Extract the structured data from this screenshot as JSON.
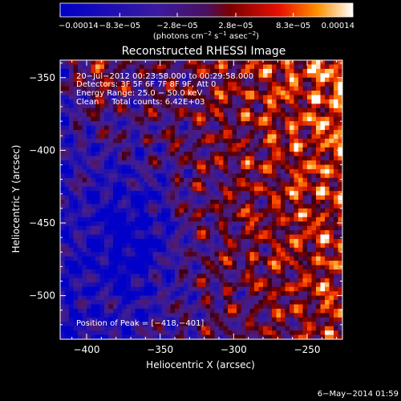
{
  "chart_data": {
    "type": "heatmap",
    "title": "Reconstructed RHESSI Image",
    "xlabel": "Heliocentric X (arcsec)",
    "ylabel": "Heliocentric Y (arcsec)",
    "xlim": [
      -418,
      -226
    ],
    "ylim": [
      -530,
      -338
    ],
    "xticks": [
      -400,
      -350,
      -300,
      -250
    ],
    "xtick_labels": [
      "−400",
      "−350",
      "−300",
      "−250"
    ],
    "yticks": [
      -350,
      -400,
      -450,
      -500
    ],
    "ytick_labels": [
      "−350",
      "−400",
      "−450",
      "−500"
    ],
    "colorbar": {
      "min": -0.00014,
      "max": 0.00014,
      "ticks": [
        -0.00014,
        -8.3e-05,
        -2.8e-05,
        2.8e-05,
        8.3e-05,
        0.00014
      ],
      "tick_labels": [
        "−0.00014",
        "−8.3e−05",
        "−2.8e−05",
        "2.8e−05",
        "8.3e−05",
        "0.00014"
      ],
      "unit_prefix": "(photons cm",
      "unit_exp1": "−2",
      "unit_mid": " s",
      "unit_exp2": "−1",
      "unit_mid2": " asec",
      "unit_exp3": "−2",
      "unit_suffix": ")"
    },
    "peak": {
      "x": -418,
      "y": -401
    },
    "grid": false
  },
  "annotations": [
    "20−Jul−2012 00:23:58.000 to 00:29:58.000",
    "Detectors: 3F 5F 6F 7F 8F 9F, Att 0",
    "Energy Range: 25.0 − 50.0 keV",
    "Clean     Total counts: 6.42E+03"
  ],
  "peak_label": "Position of Peak = [−418,−401]",
  "timestamp": "6−May−2014 01:59"
}
